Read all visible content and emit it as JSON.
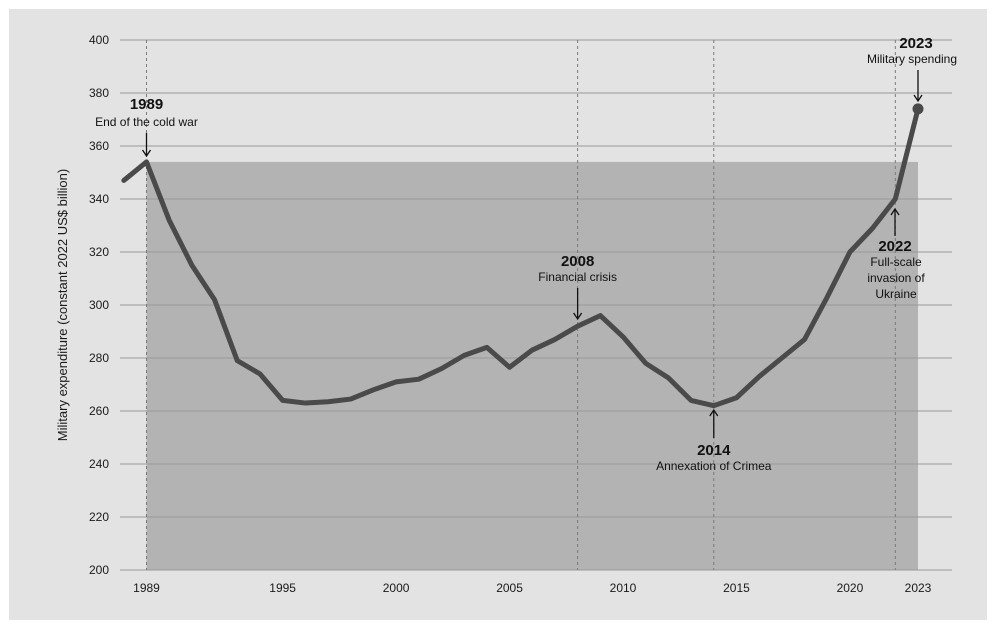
{
  "chart_data": {
    "type": "line",
    "title": "",
    "xlabel": "",
    "ylabel": "Military expenditure (constant 2022 US$ billion)",
    "xlim": [
      1988,
      2023.5
    ],
    "ylim": [
      200,
      400
    ],
    "y_ticks": [
      200,
      220,
      240,
      260,
      280,
      300,
      320,
      340,
      360,
      380,
      400
    ],
    "x_ticks": [
      {
        "value": 1989,
        "label": "1989"
      },
      {
        "value": 1995,
        "label": "1995"
      },
      {
        "value": 2000,
        "label": "2000"
      },
      {
        "value": 2005,
        "label": "2005"
      },
      {
        "value": 2010,
        "label": "2010"
      },
      {
        "value": 2015,
        "label": "2015"
      },
      {
        "value": 2020,
        "label": "2020"
      },
      {
        "value": 2023,
        "label": "2023"
      }
    ],
    "grid": true,
    "shaded_region": {
      "x": [
        1989,
        2023
      ],
      "y": [
        200,
        354
      ]
    },
    "series": [
      {
        "color": "#4a4a4a",
        "x": [
          1988,
          1989,
          1990,
          1991,
          1992,
          1993,
          1994,
          1995,
          1996,
          1997,
          1998,
          1999,
          2000,
          2001,
          2002,
          2003,
          2004,
          2005,
          2006,
          2007,
          2008,
          2009,
          2010,
          2011,
          2012,
          2013,
          2014,
          2015,
          2016,
          2017,
          2018,
          2019,
          2020,
          2021,
          2022,
          2023
        ],
        "y": [
          347,
          354,
          332,
          315,
          302,
          279,
          274,
          264,
          263,
          263.5,
          264.5,
          268,
          271,
          272,
          276,
          281,
          284,
          276.5,
          283,
          287,
          292,
          296,
          288,
          278,
          272.5,
          264,
          262,
          265,
          273,
          280,
          287,
          303,
          320,
          329,
          340,
          374
        ]
      }
    ],
    "annotations": [
      {
        "year": "1989",
        "text": "End of the cold war"
      },
      {
        "year": "2008",
        "text": "Financial crisis"
      },
      {
        "year": "2014",
        "text": "Annexation of Crimea"
      },
      {
        "year": "2022",
        "text": "Full-scale invasion of Ukraine"
      },
      {
        "year": "2023",
        "text": "Military spending"
      }
    ]
  },
  "colors": {
    "background": "#e3e3e3",
    "shade": "#b3b3b3",
    "line": "#4a4a4a",
    "grid": "#9a9a9a",
    "text": "#1a1a1a"
  }
}
